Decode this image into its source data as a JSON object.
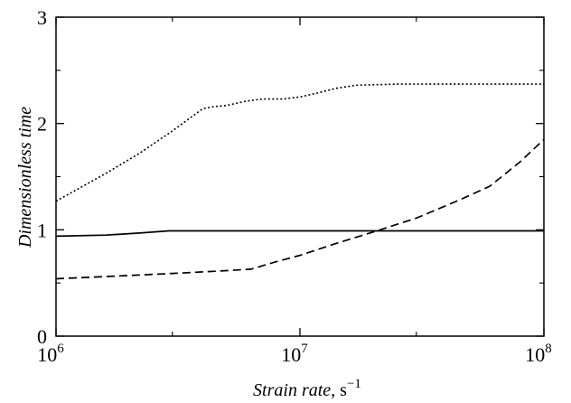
{
  "chart_data": {
    "type": "line",
    "xlabel": {
      "text": "Strain rate",
      "unit_base": "s",
      "unit_exp": "−1"
    },
    "ylabel": "Dimensionless time",
    "x_scale": "log",
    "xlim": [
      1000000,
      100000000
    ],
    "ylim": [
      0,
      3
    ],
    "x_ticks": [
      {
        "base": "10",
        "exp": "6",
        "value": 1000000
      },
      {
        "base": "10",
        "exp": "7",
        "value": 10000000
      },
      {
        "base": "10",
        "exp": "8",
        "value": 100000000
      }
    ],
    "y_ticks": [
      {
        "label": "0",
        "value": 0
      },
      {
        "label": "1",
        "value": 1
      },
      {
        "label": "2",
        "value": 2
      },
      {
        "label": "3",
        "value": 3
      }
    ],
    "grid": false,
    "legend": "none",
    "series": [
      {
        "style": "solid",
        "color": "#000000",
        "points": [
          [
            1000000,
            0.94
          ],
          [
            1600000,
            0.95
          ],
          [
            2200000,
            0.97
          ],
          [
            2900000,
            0.99
          ],
          [
            5000000,
            0.99
          ],
          [
            10000000,
            0.99
          ],
          [
            20000000,
            0.99
          ],
          [
            50000000,
            0.99
          ],
          [
            100000000,
            0.99
          ]
        ]
      },
      {
        "style": "dashed",
        "color": "#000000",
        "points": [
          [
            1000000,
            0.54
          ],
          [
            2000000,
            0.57
          ],
          [
            3000000,
            0.59
          ],
          [
            4500000,
            0.61
          ],
          [
            6300000,
            0.63
          ],
          [
            8000000,
            0.7
          ],
          [
            10000000,
            0.76
          ],
          [
            14000000,
            0.87
          ],
          [
            20000000,
            0.98
          ],
          [
            30000000,
            1.11
          ],
          [
            45000000,
            1.28
          ],
          [
            60000000,
            1.41
          ],
          [
            80000000,
            1.64
          ],
          [
            100000000,
            1.85
          ]
        ]
      },
      {
        "style": "dotted",
        "color": "#000000",
        "points": [
          [
            1000000,
            1.27
          ],
          [
            1600000,
            1.53
          ],
          [
            2200000,
            1.72
          ],
          [
            3000000,
            1.93
          ],
          [
            4000000,
            2.14
          ],
          [
            4500000,
            2.16
          ],
          [
            5000000,
            2.17
          ],
          [
            6000000,
            2.21
          ],
          [
            7000000,
            2.23
          ],
          [
            8500000,
            2.23
          ],
          [
            10000000,
            2.25
          ],
          [
            12000000,
            2.29
          ],
          [
            14000000,
            2.33
          ],
          [
            17000000,
            2.36
          ],
          [
            25000000,
            2.37
          ],
          [
            50000000,
            2.37
          ],
          [
            100000000,
            2.37
          ]
        ]
      }
    ]
  }
}
